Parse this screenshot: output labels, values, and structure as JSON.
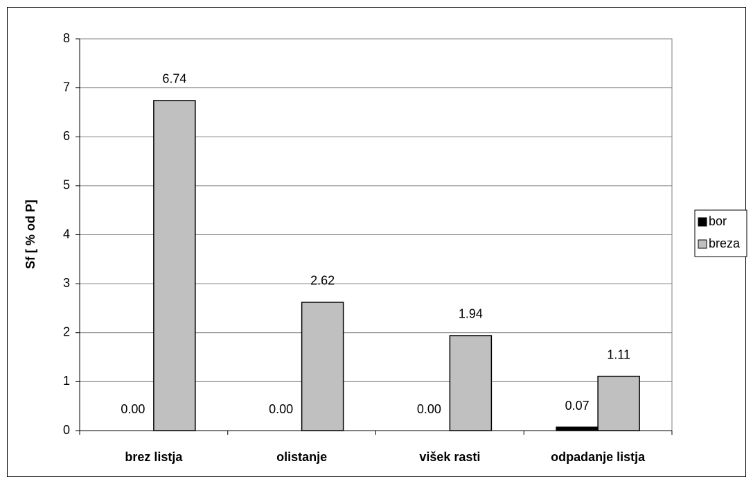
{
  "chart_data": {
    "type": "bar",
    "y_label": "Sf [ % od P]",
    "categories": [
      "brez listja",
      "olistanje",
      "višek rasti",
      "odpadanje listja"
    ],
    "series": [
      {
        "name": "bor",
        "color": "#000000",
        "values": [
          0,
          0,
          0,
          0.07
        ],
        "value_labels": [
          "0.00",
          "0.00",
          "0.00",
          "0.07"
        ]
      },
      {
        "name": "breza",
        "color": "#c0c0c0",
        "values": [
          6.74,
          2.62,
          1.94,
          1.11
        ]
      }
    ],
    "ylim": [
      0,
      8
    ],
    "yticks": [
      0,
      1,
      2,
      3,
      4,
      5,
      6,
      7,
      8
    ],
    "grid": true,
    "legend": "right"
  }
}
